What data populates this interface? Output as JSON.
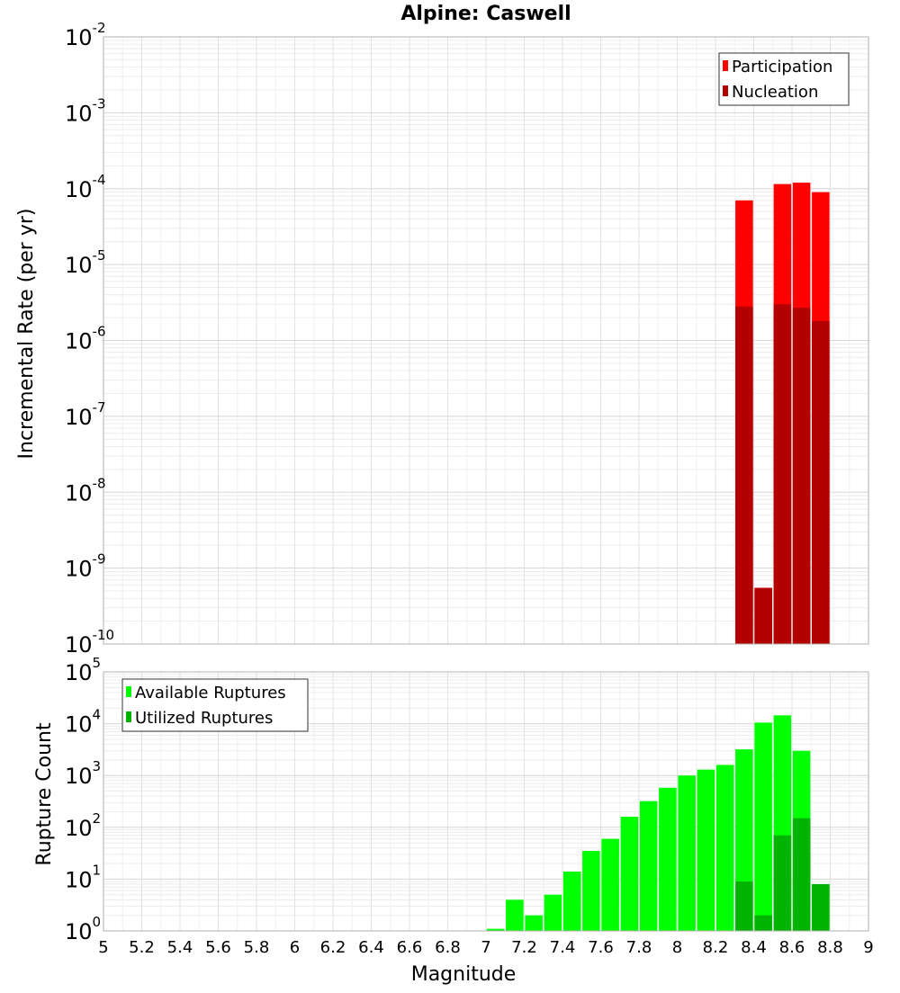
{
  "chart_data": [
    {
      "type": "bar",
      "title": "Alpine: Caswell",
      "xlabel": "",
      "ylabel": "Incremental Rate (per yr)",
      "yscale": "log",
      "ylim_exponents": [
        -10,
        -2
      ],
      "xlim": [
        5,
        9
      ],
      "grid": true,
      "legend_position": "top-right",
      "series": [
        {
          "name": "Participation",
          "color": "#ff0000",
          "x": [
            8.35,
            8.45,
            8.55,
            8.65,
            8.75
          ],
          "values": [
            7e-05,
            5.5e-10,
            0.000115,
            0.00012,
            9e-05
          ]
        },
        {
          "name": "Nucleation",
          "color": "#b30000",
          "x": [
            8.35,
            8.45,
            8.55,
            8.65,
            8.75
          ],
          "values": [
            2.8e-06,
            5.5e-10,
            3e-06,
            2.7e-06,
            1.8e-06
          ]
        }
      ]
    },
    {
      "type": "bar",
      "title": "",
      "xlabel": "Magnitude",
      "ylabel": "Rupture Count",
      "yscale": "log",
      "ylim_exponents": [
        0,
        5
      ],
      "xlim": [
        5,
        9
      ],
      "xticks": [
        "5",
        "5.2",
        "5.4",
        "5.6",
        "5.8",
        "6",
        "6.2",
        "6.4",
        "6.6",
        "6.8",
        "7",
        "7.2",
        "7.4",
        "7.6",
        "7.8",
        "8",
        "8.2",
        "8.4",
        "8.6",
        "8.8",
        "9"
      ],
      "grid": true,
      "legend_position": "top-left",
      "series": [
        {
          "name": "Available Ruptures",
          "color": "#00ff00",
          "x": [
            7.05,
            7.15,
            7.25,
            7.35,
            7.45,
            7.55,
            7.65,
            7.75,
            7.85,
            7.95,
            8.05,
            8.15,
            8.25,
            8.35,
            8.45,
            8.55,
            8.65,
            8.75
          ],
          "values": [
            1.1,
            4,
            2,
            5,
            14,
            35,
            60,
            160,
            320,
            580,
            1000,
            1300,
            1600,
            3200,
            10500,
            14500,
            3000,
            8
          ]
        },
        {
          "name": "Utilized Ruptures",
          "color": "#00b300",
          "x": [
            8.35,
            8.45,
            8.55,
            8.65,
            8.75
          ],
          "values": [
            9,
            2,
            70,
            150,
            8
          ]
        }
      ]
    }
  ]
}
